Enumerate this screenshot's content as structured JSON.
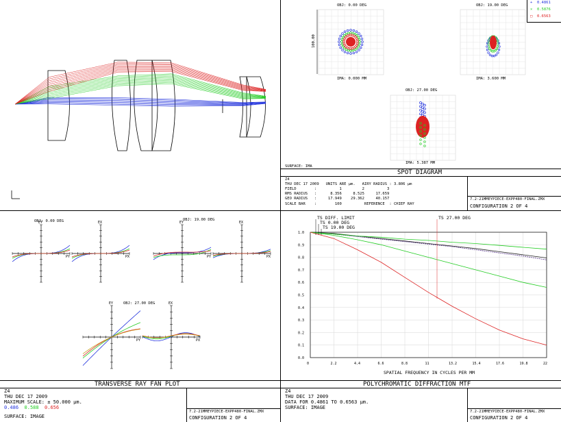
{
  "colors": {
    "blue": "#2233dd",
    "green": "#22cc22",
    "red": "#dd2222",
    "purple": "#553388"
  },
  "legend": [
    {
      "marker": "+",
      "label": "0.4861",
      "color": "#2233dd"
    },
    {
      "marker": "×",
      "label": "0.5876",
      "color": "#22cc22"
    },
    {
      "marker": "□",
      "label": "0.6563",
      "color": "#dd2222"
    }
  ],
  "spot": {
    "title": "SPOT DIAGRAM",
    "fields": [
      {
        "obj": "OBJ: 0.00 DEG",
        "ima": "IMA: 0.000 MM"
      },
      {
        "obj": "OBJ: 19.00 DEG",
        "ima": "IMA: 3.600 MM"
      },
      {
        "obj": "OBJ: 27.00 DEG",
        "ima": "IMA: 5.387 MM"
      }
    ],
    "scale_label": "100.00",
    "surface": "SURFACE: IMA",
    "info": {
      "z": "Z4",
      "line1": "THU DEC 17 2009   UNITS ARE µm.   AIRY RADIUS : 3.806 µm",
      "line2": "FIELD        :          1         2          3",
      "line3": "RMS RADIUS   :      8.356     8.525     17.659",
      "line4": "GEO RADIUS   :     17.949    29.362     40.157",
      "line5": "SCALE BAR    :        100          REFERENCE  : CHIEF RAY"
    },
    "file": "7.2-21MMEYPIECE-EXPP480-FINAL.ZMX",
    "config": "CONFIGURATION 2 OF 4"
  },
  "fan": {
    "title": "TRANSVERSE RAY FAN PLOT",
    "fields": [
      "OBJ: 0.00 DEG",
      "OBJ: 19.00 DEG",
      "OBJ: 27.00 DEG"
    ],
    "ey": "EY",
    "ex": "EX",
    "py": "PY",
    "px": "PX",
    "info": {
      "z": "Z4",
      "date": "THU DEC 17 2009",
      "scale": "MAXIMUM SCALE: ± 50.000 µm.",
      "w1": "0.486",
      "w2": "0.588",
      "w3": "0.656",
      "surface": "SURFACE: IMAGE"
    },
    "file": "7.2-21MMEYPIECE-EXPP480-FINAL.ZMX",
    "config": "CONFIGURATION 2 OF 4"
  },
  "mtf": {
    "title": "POLYCHROMATIC DIFFRACTION MTF",
    "labels": [
      "TS DIFF. LIMIT",
      "TS 0.00 DEG",
      "TS 19.00 DEG",
      "TS 27.00 DEG"
    ],
    "xlabel": "SPATIAL FREQUENCY IN CYCLES PER MM",
    "info": {
      "z": "Z4",
      "date": "THU DEC 17 2009",
      "data": "DATA FOR 0.4861 TO 0.6563 µm.",
      "surface": "SURFACE: IMAGE"
    },
    "file": "7.2-21MMEYPIECE-EXPP480-FINAL.ZMX",
    "config": "CONFIGURATION 2 OF 4"
  },
  "chart_data": {
    "type": "line",
    "title": "POLYCHROMATIC DIFFRACTION MTF",
    "xlabel": "SPATIAL FREQUENCY IN CYCLES PER MM",
    "ylabel": "",
    "x_ticks": [
      "0",
      "2.2",
      "4.4",
      "6.6",
      "8.8",
      "11",
      "13.2",
      "15.4",
      "17.6",
      "19.8",
      "22"
    ],
    "y_ticks": [
      "0.0",
      "0.1",
      "0.2",
      "0.3",
      "0.4",
      "0.5",
      "0.6",
      "0.7",
      "0.8",
      "0.9",
      "1.0"
    ],
    "xlim": [
      0,
      22
    ],
    "ylim": [
      0,
      1
    ],
    "x": [
      0,
      2.2,
      4.4,
      6.6,
      8.8,
      11,
      13.2,
      15.4,
      17.6,
      19.8,
      22
    ],
    "series": [
      {
        "name": "TS DIFF. LIMIT",
        "color": "#222222",
        "values": [
          1.0,
          0.99,
          0.97,
          0.95,
          0.93,
          0.91,
          0.89,
          0.87,
          0.845,
          0.82,
          0.795
        ]
      },
      {
        "color": "#553388",
        "values": [
          1.0,
          0.985,
          0.965,
          0.945,
          0.925,
          0.905,
          0.885,
          0.86,
          0.835,
          0.81,
          0.78
        ]
      },
      {
        "color": "#22cc22",
        "values": [
          1.0,
          0.985,
          0.97,
          0.96,
          0.945,
          0.935,
          0.92,
          0.91,
          0.895,
          0.88,
          0.865
        ]
      },
      {
        "color": "#22cc22",
        "values": [
          1.0,
          0.975,
          0.94,
          0.9,
          0.85,
          0.8,
          0.75,
          0.7,
          0.65,
          0.6,
          0.56
        ]
      },
      {
        "color": "#dd2222",
        "values": [
          1.0,
          0.95,
          0.86,
          0.76,
          0.64,
          0.52,
          0.41,
          0.31,
          0.22,
          0.15,
          0.1
        ]
      }
    ]
  }
}
